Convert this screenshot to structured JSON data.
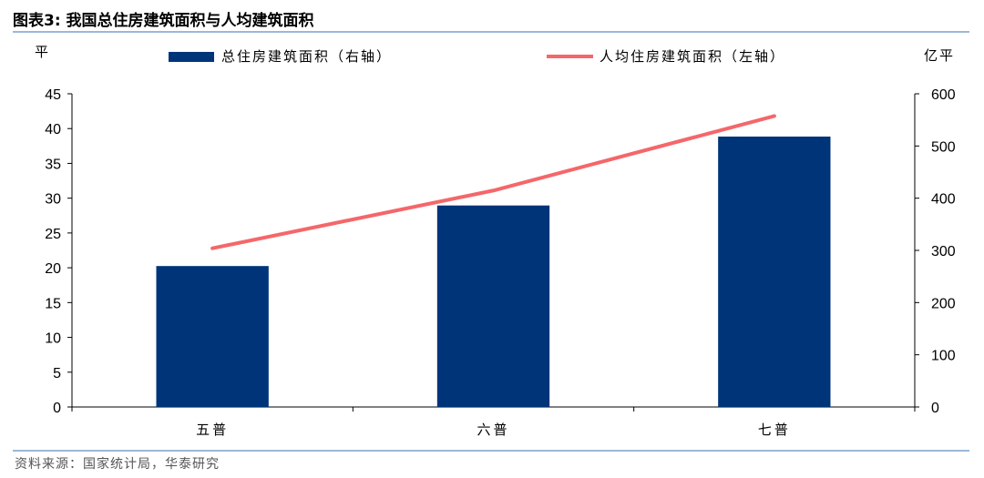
{
  "header": {
    "title": "图表3:  我国总住房建筑面积与人均建筑面积"
  },
  "footer": {
    "source": "资料来源：国家统计局，华泰研究"
  },
  "chart_data": {
    "type": "bar",
    "categories": [
      "五普",
      "六普",
      "七普"
    ],
    "series": [
      {
        "name": "总住房建筑面积（右轴）",
        "type": "bar",
        "axis": "right",
        "color": "#003478",
        "values": [
          270,
          386,
          518
        ]
      },
      {
        "name": "人均住房建筑面积（左轴）",
        "type": "line",
        "axis": "left",
        "color": "#f4676a",
        "values": [
          22.8,
          31.1,
          41.8
        ]
      }
    ],
    "left_axis": {
      "label": "平",
      "ylim": [
        0,
        45
      ],
      "ticks": [
        0,
        5,
        10,
        15,
        20,
        25,
        30,
        35,
        40,
        45
      ]
    },
    "right_axis": {
      "label": "亿平",
      "ylim": [
        0,
        600
      ],
      "ticks": [
        0,
        100,
        200,
        300,
        400,
        500,
        600
      ]
    },
    "grid": false,
    "legend_position": "top"
  }
}
